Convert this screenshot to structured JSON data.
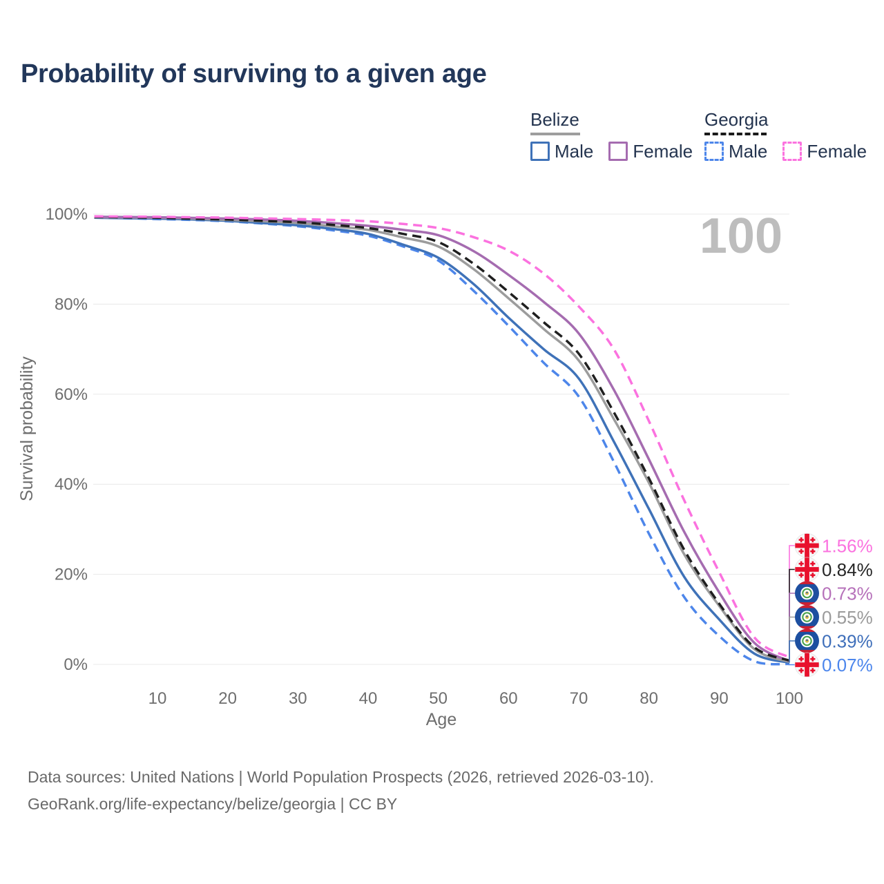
{
  "title": "Probability of surviving to a given age",
  "legend": {
    "groups": [
      {
        "label": "Belize",
        "line_style": "solid",
        "underline_color": "#9e9e9e",
        "items": [
          {
            "label": "Male",
            "color": "#3f72b8",
            "dashed": false
          },
          {
            "label": "Female",
            "color": "#a56cb0",
            "dashed": false
          }
        ]
      },
      {
        "label": "Georgia",
        "line_style": "dashed",
        "underline_color": "#1a1a1a",
        "items": [
          {
            "label": "Male",
            "color": "#4d86ea",
            "dashed": true
          },
          {
            "label": "Female",
            "color": "#fb72df",
            "dashed": true
          }
        ]
      }
    ]
  },
  "chart_data": {
    "type": "line",
    "title": "Probability of surviving to a given age",
    "xlabel": "Age",
    "ylabel": "Survival probability",
    "xlim": [
      0,
      100
    ],
    "ylim": [
      0,
      100
    ],
    "x_ticks": [
      10,
      20,
      30,
      40,
      50,
      60,
      70,
      80,
      90,
      100
    ],
    "y_ticks": [
      [
        0,
        "0%"
      ],
      [
        20,
        "20%"
      ],
      [
        40,
        "40%"
      ],
      [
        60,
        "60%"
      ],
      [
        80,
        "80%"
      ],
      [
        100,
        "100%"
      ]
    ],
    "grid": "horizontal",
    "hover_age_indicator": "100",
    "x": [
      1,
      5,
      10,
      15,
      20,
      25,
      30,
      35,
      40,
      45,
      50,
      55,
      60,
      65,
      70,
      75,
      80,
      85,
      90,
      95,
      100
    ],
    "series": [
      {
        "name": "Georgia Female",
        "flag": "georgia",
        "color": "#fb72df",
        "label_color": "#fb72df",
        "dash": true,
        "end_label": "1.56%",
        "values": [
          99.5,
          99.45,
          99.4,
          99.3,
          99.2,
          99.05,
          98.9,
          98.7,
          98.4,
          97.8,
          96.9,
          94.9,
          91.9,
          86.8,
          79.5,
          70.0,
          54.0,
          36.5,
          20.5,
          6.0,
          1.56
        ]
      },
      {
        "name": "Georgia Total",
        "flag": "georgia",
        "color": "#1f1f1f",
        "label_color": "#262626",
        "dash": true,
        "end_label": "0.84%",
        "values": [
          99.4,
          99.3,
          99.2,
          99.0,
          98.8,
          98.5,
          98.2,
          97.6,
          96.9,
          95.6,
          93.8,
          89.0,
          82.7,
          76.0,
          69.0,
          56.0,
          41.3,
          25.5,
          13.5,
          3.8,
          0.84
        ]
      },
      {
        "name": "Belize Female",
        "flag": "belize",
        "color": "#a56cb0",
        "label_color": "#b671ba",
        "dash": false,
        "end_label": "0.73%",
        "values": [
          99.4,
          99.35,
          99.3,
          99.15,
          99.0,
          98.8,
          98.5,
          98.0,
          97.4,
          96.5,
          95.3,
          91.8,
          86.5,
          80.5,
          73.5,
          61.0,
          45.5,
          29.5,
          16.0,
          4.8,
          0.73
        ]
      },
      {
        "name": "Belize Total",
        "flag": "belize",
        "color": "#9c9c9c",
        "label_color": "#9b9b9b",
        "dash": false,
        "end_label": "0.55%",
        "values": [
          99.3,
          99.25,
          99.2,
          99.0,
          98.7,
          98.4,
          98.0,
          97.3,
          96.5,
          94.8,
          92.8,
          87.8,
          81.3,
          74.5,
          67.5,
          54.5,
          40.3,
          24.5,
          13.0,
          3.4,
          0.55
        ]
      },
      {
        "name": "Belize Male",
        "flag": "belize",
        "color": "#3f72b8",
        "label_color": "#3f6fba",
        "dash": false,
        "end_label": "0.39%",
        "values": [
          99.2,
          99.1,
          99.0,
          98.8,
          98.5,
          98.0,
          97.5,
          96.7,
          95.6,
          93.2,
          90.3,
          84.5,
          77.0,
          70.0,
          63.5,
          49.5,
          34.5,
          19.5,
          10.0,
          2.4,
          0.39
        ]
      },
      {
        "name": "Georgia Male",
        "flag": "georgia",
        "color": "#4d86ea",
        "label_color": "#4c86ec",
        "dash": true,
        "end_label": "0.07%",
        "values": [
          99.2,
          99.1,
          98.9,
          98.7,
          98.4,
          97.9,
          97.3,
          96.4,
          95.2,
          92.8,
          89.7,
          83.0,
          75.2,
          67.0,
          59.5,
          45.0,
          29.0,
          15.0,
          6.3,
          0.7,
          0.07
        ]
      }
    ]
  },
  "footer": {
    "line1": "Data sources: United Nations | World Population Prospects (2026, retrieved 2026-03-10).",
    "line2": "GeoRank.org/life-expectancy/belize/georgia | CC BY"
  }
}
